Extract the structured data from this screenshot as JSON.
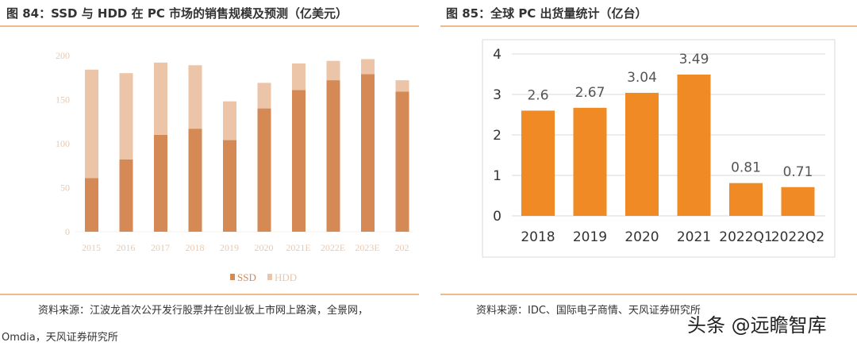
{
  "left": {
    "title": "图 84：SSD 与 HDD 在 PC 市场的销售规模及预测（亿美元）",
    "source_line1": "资料来源：江波龙首次公开发行股票并在创业板上市网上路演，全景网，",
    "source_line2": "Omdia，天风证券研究所"
  },
  "right": {
    "title": "图 85：全球  PC 出货量统计（亿台）",
    "source": "资料来源：IDC、国际电子商情、天风证券研究所"
  },
  "watermark": "头条 @远瞻智库",
  "chart_data": [
    {
      "type": "bar",
      "stacked": true,
      "categories": [
        "2015",
        "2016",
        "2017",
        "2018",
        "2019",
        "2020",
        "2021E",
        "2022E",
        "2023E",
        "202"
      ],
      "series": [
        {
          "name": "SSD",
          "values": [
            61,
            82,
            110,
            117,
            104,
            140,
            161,
            172,
            179,
            159
          ],
          "color": "#d58a55"
        },
        {
          "name": "HDD",
          "values": [
            123,
            98,
            82,
            72,
            44,
            29,
            30,
            22,
            17,
            13
          ],
          "color": "#ecc5a8"
        }
      ],
      "yticks": [
        0,
        50,
        100,
        150,
        200
      ],
      "ylim": [
        0,
        220
      ],
      "legend": "bottom",
      "grid": false
    },
    {
      "type": "bar",
      "categories": [
        "2018",
        "2019",
        "2020",
        "2021",
        "2022Q1",
        "2022Q2"
      ],
      "values": [
        2.6,
        2.67,
        3.04,
        3.49,
        0.81,
        0.71
      ],
      "data_labels": [
        "2.6",
        "2.67",
        "3.04",
        "3.49",
        "0.81",
        "0.71"
      ],
      "yticks": [
        0,
        1,
        2,
        3,
        4
      ],
      "ylim": [
        0,
        4
      ],
      "color": "#f08a24",
      "grid": true
    }
  ]
}
